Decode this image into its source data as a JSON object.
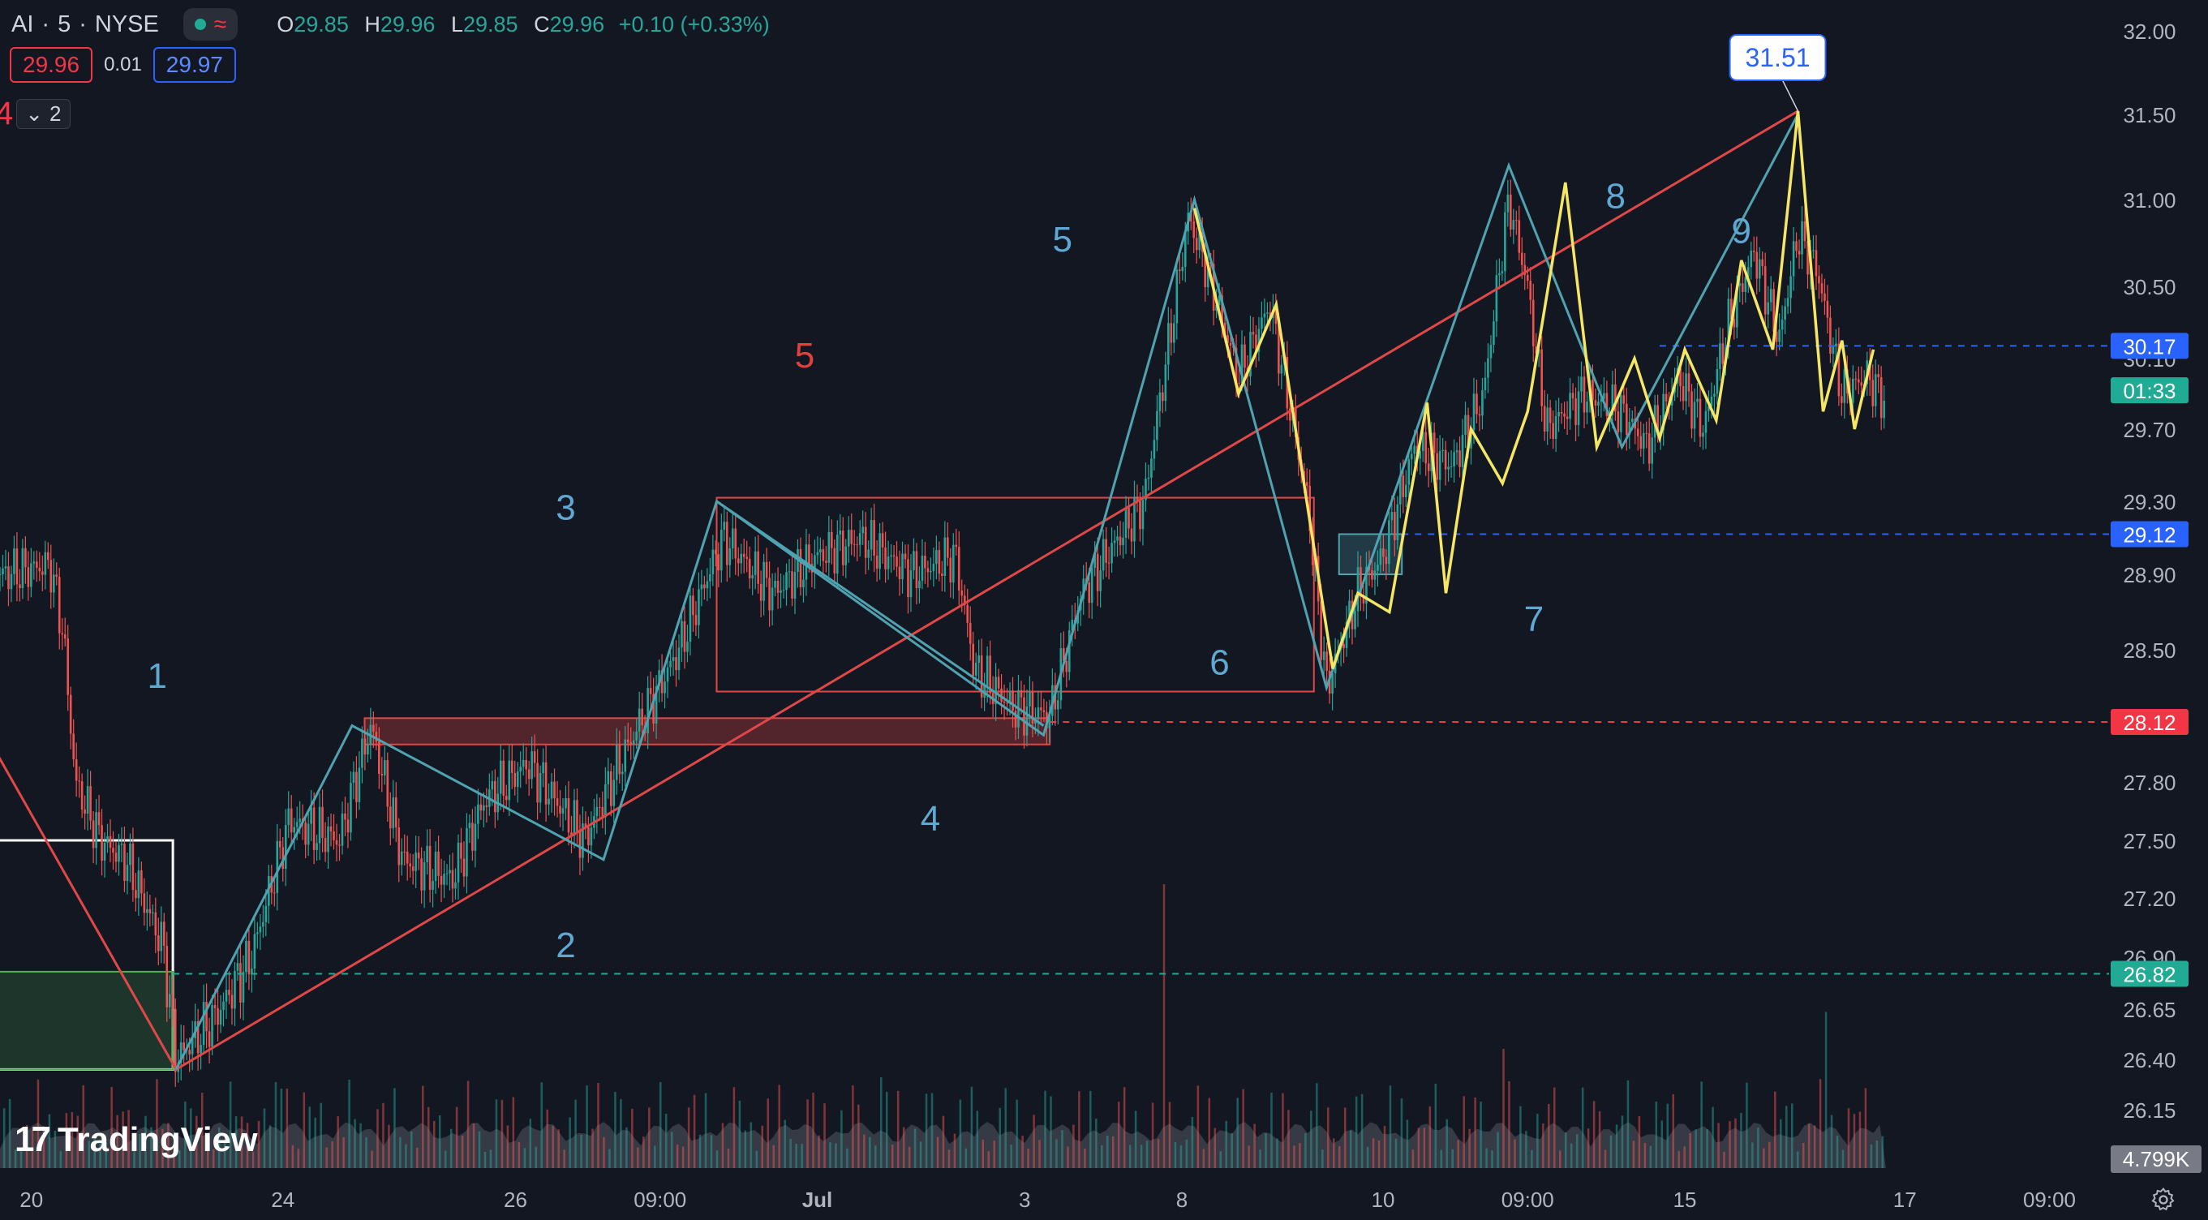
{
  "header": {
    "symbol": "AI",
    "interval": "5",
    "exchange": "NYSE",
    "ohlc": {
      "o_label": "O",
      "o": "29.85",
      "h_label": "H",
      "h": "29.96",
      "l_label": "L",
      "l": "29.85",
      "c_label": "C",
      "c": "29.96",
      "change": "+0.10 (+0.33%)"
    }
  },
  "trade": {
    "sell": "29.96",
    "spread": "0.01",
    "buy": "29.97"
  },
  "indicator": {
    "label": "4",
    "count": "2"
  },
  "logo": {
    "text": "TradingView"
  },
  "colors": {
    "bg": "#131722",
    "up": "#26a69a",
    "down": "#ef5350",
    "teal": "#4fa3b0",
    "yellow": "#f5e663",
    "red_line": "#e04848",
    "wave_label": "#5fa8d3",
    "wave_red": "#e0413c"
  },
  "chart_data": {
    "type": "candlestick",
    "y_axis": {
      "min": 26.15,
      "max": 32.0,
      "ticks": [
        "32.00",
        "31.50",
        "31.00",
        "30.50",
        "30.10",
        "29.70",
        "29.30",
        "28.90",
        "28.50",
        "28.12",
        "27.80",
        "27.50",
        "27.20",
        "26.90",
        "26.65",
        "26.40",
        "26.15"
      ]
    },
    "x_axis": {
      "ticks": [
        {
          "label": "20",
          "x": 0.5
        },
        {
          "label": "24",
          "x": 4.5
        },
        {
          "label": "26",
          "x": 8.2
        },
        {
          "label": "09:00",
          "x": 10.5
        },
        {
          "label": "Jul",
          "x": 13.0
        },
        {
          "label": "3",
          "x": 16.3
        },
        {
          "label": "8",
          "x": 18.8
        },
        {
          "label": "10",
          "x": 22.0
        },
        {
          "label": "09:00",
          "x": 24.3
        },
        {
          "label": "15",
          "x": 26.8
        },
        {
          "label": "17",
          "x": 30.3
        },
        {
          "label": "09:00",
          "x": 32.6
        }
      ]
    },
    "price_path": [
      [
        0,
        28.9
      ],
      [
        0.8,
        28.95
      ],
      [
        1.0,
        28.6
      ],
      [
        1.2,
        27.8
      ],
      [
        1.6,
        27.5
      ],
      [
        2.0,
        27.4
      ],
      [
        2.6,
        26.95
      ],
      [
        2.8,
        26.4
      ],
      [
        3.4,
        26.6
      ],
      [
        4.0,
        26.9
      ],
      [
        4.6,
        27.6
      ],
      [
        5.4,
        27.5
      ],
      [
        5.9,
        28.1
      ],
      [
        6.4,
        27.4
      ],
      [
        7.2,
        27.3
      ],
      [
        7.7,
        27.7
      ],
      [
        8.4,
        27.9
      ],
      [
        9.3,
        27.5
      ],
      [
        10.0,
        28.0
      ],
      [
        10.8,
        28.5
      ],
      [
        11.5,
        29.1
      ],
      [
        12.3,
        28.8
      ],
      [
        13.0,
        29.0
      ],
      [
        13.7,
        29.1
      ],
      [
        14.5,
        28.9
      ],
      [
        15.2,
        29.0
      ],
      [
        15.5,
        28.4
      ],
      [
        16.1,
        28.2
      ],
      [
        16.7,
        28.15
      ],
      [
        17.2,
        28.8
      ],
      [
        18.2,
        29.3
      ],
      [
        18.6,
        30.2
      ],
      [
        18.9,
        30.9
      ],
      [
        19.2,
        30.6
      ],
      [
        19.7,
        30.0
      ],
      [
        20.2,
        30.4
      ],
      [
        20.8,
        29.3
      ],
      [
        21.1,
        28.3
      ],
      [
        21.6,
        28.8
      ],
      [
        22.0,
        29.0
      ],
      [
        22.5,
        29.6
      ],
      [
        23.1,
        29.5
      ],
      [
        23.6,
        29.9
      ],
      [
        24.0,
        31.0
      ],
      [
        24.3,
        30.5
      ],
      [
        24.6,
        29.7
      ],
      [
        25.2,
        29.9
      ],
      [
        25.8,
        29.8
      ],
      [
        26.2,
        29.6
      ],
      [
        26.7,
        30.0
      ],
      [
        27.1,
        29.7
      ],
      [
        27.5,
        30.3
      ],
      [
        27.9,
        30.7
      ],
      [
        28.3,
        30.2
      ],
      [
        28.6,
        30.8
      ],
      [
        28.9,
        30.6
      ],
      [
        29.3,
        29.9
      ],
      [
        29.7,
        30.0
      ],
      [
        30.0,
        29.85
      ]
    ],
    "volume_peaks": [
      [
        18.5,
        1.0
      ],
      [
        14.0,
        0.32
      ],
      [
        23.9,
        0.42
      ],
      [
        29.0,
        0.55
      ],
      [
        9.5,
        0.3
      ],
      [
        4.5,
        0.28
      ]
    ],
    "volume_last": "4.799K",
    "price_labels": [
      {
        "text": "30.17",
        "color": "#2962ff",
        "price": 30.17,
        "style": "dashed"
      },
      {
        "text": "01:33",
        "color": "#22ab94",
        "price": 29.92,
        "style": "none"
      },
      {
        "text": "29.12",
        "color": "#2962ff",
        "price": 29.12,
        "style": "dashed"
      },
      {
        "text": "28.12",
        "color": "#f23645",
        "price": 28.12,
        "style": "dashed"
      },
      {
        "text": "26.82",
        "color": "#22ab94",
        "price": 26.82,
        "style": "dashed"
      }
    ],
    "teal_zigzag": [
      [
        2.8,
        26.35
      ],
      [
        5.6,
        28.1
      ],
      [
        9.6,
        27.4
      ],
      [
        11.4,
        29.3
      ],
      [
        16.6,
        28.05
      ],
      [
        19.0,
        31.0
      ],
      [
        21.1,
        28.3
      ],
      [
        24.0,
        31.2
      ],
      [
        25.8,
        29.6
      ],
      [
        28.6,
        31.5
      ]
    ],
    "yellow_zigzag": [
      [
        19.0,
        30.95
      ],
      [
        19.7,
        29.9
      ],
      [
        20.3,
        30.4
      ],
      [
        21.2,
        28.4
      ],
      [
        21.6,
        28.8
      ],
      [
        22.1,
        28.7
      ],
      [
        22.7,
        29.85
      ],
      [
        23.0,
        28.8
      ],
      [
        23.4,
        29.7
      ],
      [
        23.9,
        29.4
      ],
      [
        24.3,
        29.8
      ],
      [
        24.9,
        31.1
      ],
      [
        25.4,
        29.6
      ],
      [
        26.0,
        30.1
      ],
      [
        26.4,
        29.65
      ],
      [
        26.8,
        30.15
      ],
      [
        27.3,
        29.75
      ],
      [
        27.7,
        30.65
      ],
      [
        28.2,
        30.15
      ],
      [
        28.6,
        31.52
      ],
      [
        29.0,
        29.8
      ],
      [
        29.3,
        30.2
      ],
      [
        29.5,
        29.7
      ],
      [
        29.8,
        30.15
      ]
    ],
    "red_trendline": [
      [
        -0.3,
        28.1
      ],
      [
        2.8,
        26.35
      ],
      [
        28.6,
        31.52
      ]
    ],
    "teal_diag": [
      [
        11.4,
        29.3
      ],
      [
        16.6,
        28.1
      ]
    ],
    "boxes": [
      {
        "kind": "red-outline",
        "x0": 11.4,
        "x1": 20.9,
        "y0": 28.28,
        "y1": 29.32
      },
      {
        "kind": "red-filled",
        "x0": 5.8,
        "x1": 16.7,
        "y0": 28.0,
        "y1": 28.14
      },
      {
        "kind": "teal-filled",
        "x0": 21.3,
        "x1": 22.3,
        "y0": 28.9,
        "y1": 29.12
      },
      {
        "kind": "white-outline",
        "x0": -0.5,
        "x1": 2.75,
        "y0": 26.35,
        "y1": 27.5
      },
      {
        "kind": "green-filled",
        "x0": -0.5,
        "x1": 2.75,
        "y0": 26.35,
        "y1": 26.83
      }
    ],
    "callout": {
      "text": "31.51",
      "x": 28.6,
      "y": 31.51
    },
    "wave_labels": [
      {
        "text": "1",
        "x": 2.5,
        "y": 28.3,
        "color": "teal"
      },
      {
        "text": "2",
        "x": 9.0,
        "y": 26.9,
        "color": "teal"
      },
      {
        "text": "3",
        "x": 9.0,
        "y": 29.2,
        "color": "teal"
      },
      {
        "text": "4",
        "x": 14.8,
        "y": 27.55,
        "color": "teal"
      },
      {
        "text": "5",
        "x": 16.9,
        "y": 30.7,
        "color": "teal"
      },
      {
        "text": "5",
        "x": 12.8,
        "y": 30.05,
        "color": "red"
      },
      {
        "text": "6",
        "x": 19.4,
        "y": 28.37,
        "color": "teal"
      },
      {
        "text": "7",
        "x": 24.4,
        "y": 28.6,
        "color": "teal"
      },
      {
        "text": "8",
        "x": 25.7,
        "y": 30.95,
        "color": "teal"
      },
      {
        "text": "9",
        "x": 27.7,
        "y": 30.75,
        "color": "teal"
      }
    ]
  }
}
